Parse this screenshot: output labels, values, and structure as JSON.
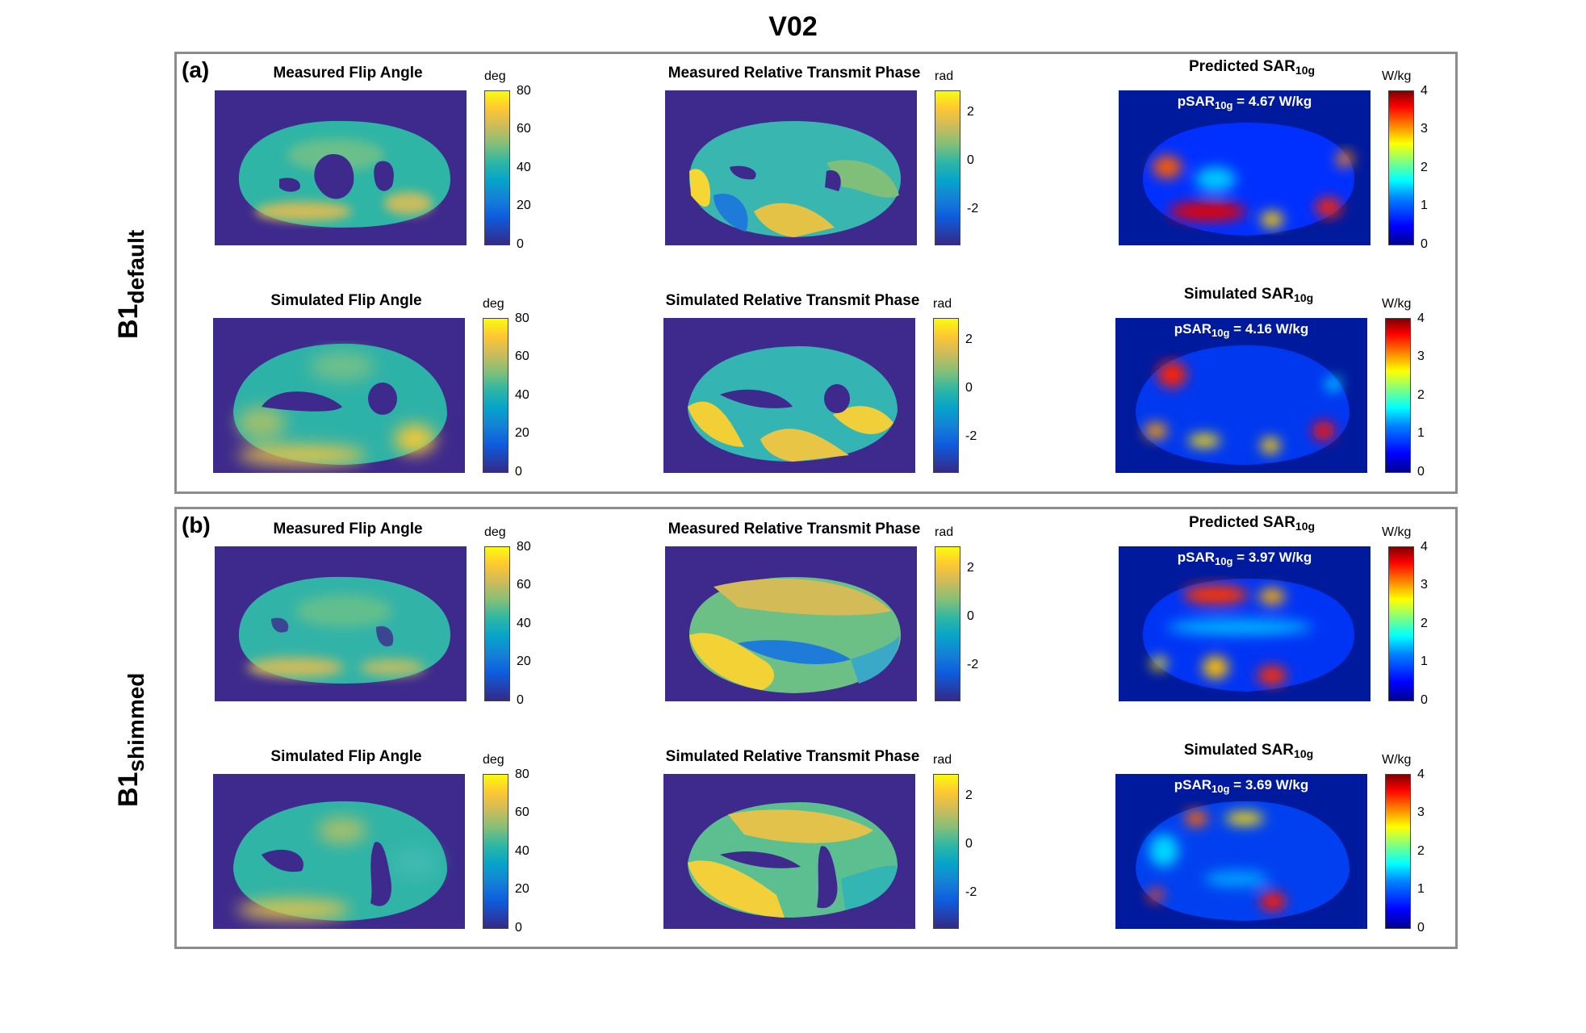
{
  "figure_title": "V02",
  "colors": {
    "background_mask_flip": "#3d2a8c",
    "background_mask_sar": "#001a9e",
    "panel_border": "#8c8c8c"
  },
  "panels": [
    {
      "letter": "(a)",
      "row_label_main": "B1",
      "row_label_sub": "default",
      "cells": [
        {
          "title": "Measured Flip Angle",
          "unit": "deg",
          "colormap": "parula",
          "ticks": [
            "80",
            "60",
            "40",
            "20",
            "0"
          ]
        },
        {
          "title": "Measured Relative Transmit Phase",
          "unit": "rad",
          "colormap": "parula",
          "ticks": [
            "2",
            "0",
            "-2"
          ]
        },
        {
          "title_main": "Predicted SAR",
          "title_sub": "10g",
          "unit": "W/kg",
          "colormap": "jet",
          "ticks": [
            "4",
            "3",
            "2",
            "1",
            "0"
          ],
          "psar_main": "pSAR",
          "psar_sub": "10g",
          "psar_value": "= 4.67 W/kg"
        },
        {
          "title": "Simulated Flip Angle",
          "unit": "deg",
          "colormap": "parula",
          "ticks": [
            "80",
            "60",
            "40",
            "20",
            "0"
          ]
        },
        {
          "title": "Simulated Relative Transmit Phase",
          "unit": "rad",
          "colormap": "parula",
          "ticks": [
            "2",
            "0",
            "-2"
          ]
        },
        {
          "title_main": "Simulated SAR",
          "title_sub": "10g",
          "unit": "W/kg",
          "colormap": "jet",
          "ticks": [
            "4",
            "3",
            "2",
            "1",
            "0"
          ],
          "psar_main": "pSAR",
          "psar_sub": "10g",
          "psar_value": "= 4.16 W/kg"
        }
      ]
    },
    {
      "letter": "(b)",
      "row_label_main": "B1",
      "row_label_sub": "shimmed",
      "cells": [
        {
          "title": "Measured  Flip Angle",
          "unit": "deg",
          "colormap": "parula",
          "ticks": [
            "80",
            "60",
            "40",
            "20",
            "0"
          ]
        },
        {
          "title": "Measured Relative Transmit Phase",
          "unit": "rad",
          "colormap": "parula",
          "ticks": [
            "2",
            "0",
            "-2"
          ]
        },
        {
          "title_main": "Predicted SAR",
          "title_sub": "10g",
          "unit": "W/kg",
          "colormap": "jet",
          "ticks": [
            "4",
            "3",
            "2",
            "1",
            "0"
          ],
          "psar_main": "pSAR",
          "psar_sub": "10g",
          "psar_value": "= 3.97 W/kg"
        },
        {
          "title": "Simulated  Flip Angle",
          "unit": "deg",
          "colormap": "parula",
          "ticks": [
            "80",
            "60",
            "40",
            "20",
            "0"
          ]
        },
        {
          "title": "Simulated Relative Transmit Phase",
          "unit": "rad",
          "colormap": "parula",
          "ticks": [
            "2",
            "0",
            "-2"
          ]
        },
        {
          "title_main": "Simulated SAR",
          "title_sub": "10g",
          "unit": "W/kg",
          "colormap": "jet",
          "ticks": [
            "4",
            "3",
            "2",
            "1",
            "0"
          ],
          "psar_main": "pSAR",
          "psar_sub": "10g",
          "psar_value": "= 3.69 W/kg"
        }
      ]
    }
  ]
}
